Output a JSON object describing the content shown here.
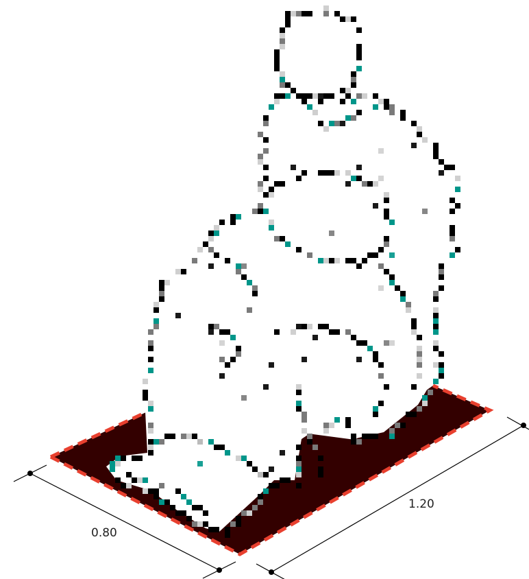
{
  "colors": {
    "base_fill": "#330000",
    "base_outline": "#e8402f",
    "voxel_black": "#000000",
    "voxel_teal": "#00968a",
    "voxel_gray": "#7a7a7a",
    "voxel_light": "#cfcfcf",
    "dimension_line": "#000000"
  },
  "dimensions": {
    "depth_label": "0.80",
    "width_label": "1.20"
  },
  "figure": {
    "description_icon": "voxel-seated-figure-icon"
  }
}
